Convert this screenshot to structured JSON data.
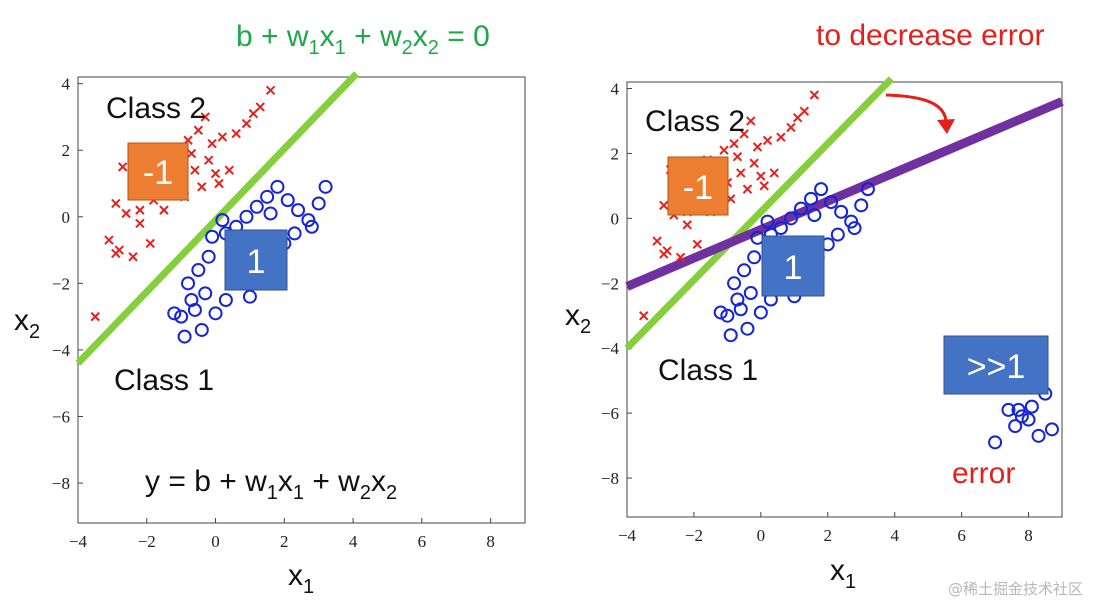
{
  "colors": {
    "class2": "#e8201c",
    "class1": "#1424d8",
    "boundary": "#86cf3c",
    "newBoundary": "#7030a0",
    "orangeBox": "#ed7d31",
    "blueBox": "#4472c4",
    "eqnGreen": "#1ea84a",
    "red": "#e3201b"
  },
  "chart_data": [
    {
      "type": "scatter",
      "xlim": [
        -4,
        9
      ],
      "ylim": [
        -9.2,
        4.2
      ],
      "xticks": [
        "−4",
        "−2",
        "0",
        "2",
        "4",
        "6",
        "8"
      ],
      "yticks": [
        "4",
        "2",
        "0",
        "−2",
        "−4",
        "−6",
        "−8"
      ],
      "xtick_values": [
        -4,
        -2,
        0,
        2,
        4,
        6,
        8
      ],
      "ytick_values": [
        4,
        2,
        0,
        -2,
        -4,
        -6,
        -8
      ],
      "xlabel": "x",
      "xlabel_sub": "1",
      "ylabel": "x",
      "ylabel_sub": "2",
      "series": [
        {
          "name": "Class 2",
          "marker": "x",
          "points": [
            [
              -2.7,
              1.5
            ],
            [
              -2.3,
              1.2
            ],
            [
              -2,
              0.9
            ],
            [
              -1.6,
              1.8
            ],
            [
              -1.3,
              1.5
            ],
            [
              -1.1,
              2.1
            ],
            [
              -0.8,
              2.3
            ],
            [
              -0.5,
              2.6
            ],
            [
              -0.3,
              3.0
            ],
            [
              -0.1,
              2.2
            ],
            [
              0.2,
              2.4
            ],
            [
              0.6,
              2.5
            ],
            [
              0.9,
              2.8
            ],
            [
              1.1,
              3.1
            ],
            [
              1.3,
              3.3
            ],
            [
              1.6,
              3.8
            ],
            [
              -2.9,
              0.4
            ],
            [
              -2.6,
              0.1
            ],
            [
              -2.2,
              0.2
            ],
            [
              -1.8,
              0.5
            ],
            [
              -1.4,
              0.7
            ],
            [
              -1,
              1.1
            ],
            [
              -0.6,
              1.4
            ],
            [
              -0.2,
              1.7
            ],
            [
              0.1,
              1.0
            ],
            [
              0.4,
              1.4
            ],
            [
              -3.1,
              -0.7
            ],
            [
              -2.8,
              -1.0
            ],
            [
              -2.4,
              -1.2
            ],
            [
              -1.9,
              -0.8
            ],
            [
              -3.5,
              -3.0
            ],
            [
              -2.2,
              -0.2
            ],
            [
              -1.5,
              0.2
            ],
            [
              -0.9,
              0.6
            ],
            [
              -0.4,
              0.9
            ],
            [
              0,
              1.3
            ],
            [
              -2.9,
              -1.1
            ],
            [
              -1.2,
              1.6
            ],
            [
              -0.7,
              1.9
            ],
            [
              -1.6,
              0.9
            ]
          ],
          "extra_points": []
        },
        {
          "name": "Class 1",
          "marker": "o",
          "points": [
            [
              0.3,
              -0.5
            ],
            [
              0.6,
              -0.3
            ],
            [
              0.9,
              0
            ],
            [
              1.2,
              0.3
            ],
            [
              1.5,
              0.6
            ],
            [
              1.8,
              0.9
            ],
            [
              2.1,
              0.5
            ],
            [
              2.4,
              0.2
            ],
            [
              2.7,
              -0.1
            ],
            [
              3.0,
              0.4
            ],
            [
              3.2,
              0.9
            ],
            [
              0.5,
              -1.0
            ],
            [
              0.8,
              -1.3
            ],
            [
              1.1,
              -1.6
            ],
            [
              1.4,
              -1.9
            ],
            [
              -0.2,
              -1.2
            ],
            [
              -0.5,
              -1.6
            ],
            [
              -0.8,
              -2.0
            ],
            [
              -0.3,
              -2.3
            ],
            [
              -0.6,
              -2.8
            ],
            [
              -1.0,
              -3.0
            ],
            [
              -0.4,
              -3.4
            ],
            [
              0,
              -2.9
            ],
            [
              0.3,
              -2.5
            ],
            [
              1,
              -2.4
            ],
            [
              1.7,
              -1.2
            ],
            [
              2,
              -0.8
            ],
            [
              2.3,
              -0.5
            ],
            [
              1.6,
              0.1
            ],
            [
              0.2,
              -0.1
            ],
            [
              -0.1,
              -0.6
            ],
            [
              1.2,
              -0.8
            ],
            [
              0.6,
              -1.8
            ],
            [
              -0.7,
              -2.5
            ],
            [
              -1.2,
              -2.9
            ],
            [
              -0.9,
              -3.6
            ],
            [
              2.8,
              -0.3
            ]
          ],
          "extra_points": []
        }
      ],
      "lines": [
        {
          "name": "boundary",
          "from": [
            -4,
            -4.4
          ],
          "to": [
            4.1,
            4.3
          ]
        }
      ]
    },
    {
      "type": "scatter",
      "xlim": [
        -4,
        9
      ],
      "ylim": [
        -9.2,
        4.2
      ],
      "xticks": [
        "−4",
        "−2",
        "0",
        "2",
        "4",
        "6",
        "8"
      ],
      "yticks": [
        "4",
        "2",
        "0",
        "−2",
        "−4",
        "−6",
        "−8"
      ],
      "xtick_values": [
        -4,
        -2,
        0,
        2,
        4,
        6,
        8
      ],
      "ytick_values": [
        4,
        2,
        0,
        -2,
        -4,
        -6,
        -8
      ],
      "xlabel": "x",
      "xlabel_sub": "1",
      "ylabel": "x",
      "ylabel_sub": "2",
      "series": [
        {
          "name": "Class 2",
          "marker": "x",
          "points": [
            [
              -2.7,
              1.5
            ],
            [
              -2.3,
              1.2
            ],
            [
              -2,
              0.9
            ],
            [
              -1.6,
              1.8
            ],
            [
              -1.3,
              1.5
            ],
            [
              -1.1,
              2.1
            ],
            [
              -0.8,
              2.3
            ],
            [
              -0.5,
              2.6
            ],
            [
              -0.3,
              3.0
            ],
            [
              -0.1,
              2.2
            ],
            [
              0.2,
              2.4
            ],
            [
              0.6,
              2.5
            ],
            [
              0.9,
              2.8
            ],
            [
              1.1,
              3.1
            ],
            [
              1.3,
              3.3
            ],
            [
              1.6,
              3.8
            ],
            [
              -2.9,
              0.4
            ],
            [
              -2.6,
              0.1
            ],
            [
              -2.2,
              0.2
            ],
            [
              -1.8,
              0.5
            ],
            [
              -1.4,
              0.7
            ],
            [
              -1,
              1.1
            ],
            [
              -0.6,
              1.4
            ],
            [
              -0.2,
              1.7
            ],
            [
              0.1,
              1.0
            ],
            [
              0.4,
              1.4
            ],
            [
              -3.1,
              -0.7
            ],
            [
              -2.8,
              -1.0
            ],
            [
              -2.4,
              -1.2
            ],
            [
              -1.9,
              -0.8
            ],
            [
              -3.5,
              -3.0
            ],
            [
              -2.2,
              -0.2
            ],
            [
              -1.5,
              0.2
            ],
            [
              -0.9,
              0.6
            ],
            [
              -0.4,
              0.9
            ],
            [
              0,
              1.3
            ],
            [
              -2.9,
              -1.1
            ],
            [
              -1.2,
              1.6
            ],
            [
              -0.7,
              1.9
            ],
            [
              -1.6,
              0.9
            ]
          ],
          "extra_points": []
        },
        {
          "name": "Class 1",
          "marker": "o",
          "points": [
            [
              0.3,
              -0.5
            ],
            [
              0.6,
              -0.3
            ],
            [
              0.9,
              0
            ],
            [
              1.2,
              0.3
            ],
            [
              1.5,
              0.6
            ],
            [
              1.8,
              0.9
            ],
            [
              2.1,
              0.5
            ],
            [
              2.4,
              0.2
            ],
            [
              2.7,
              -0.1
            ],
            [
              3.0,
              0.4
            ],
            [
              3.2,
              0.9
            ],
            [
              0.5,
              -1.0
            ],
            [
              0.8,
              -1.3
            ],
            [
              1.1,
              -1.6
            ],
            [
              1.4,
              -1.9
            ],
            [
              -0.2,
              -1.2
            ],
            [
              -0.5,
              -1.6
            ],
            [
              -0.8,
              -2.0
            ],
            [
              -0.3,
              -2.3
            ],
            [
              -0.6,
              -2.8
            ],
            [
              -1.0,
              -3.0
            ],
            [
              -0.4,
              -3.4
            ],
            [
              0,
              -2.9
            ],
            [
              0.3,
              -2.5
            ],
            [
              1,
              -2.4
            ],
            [
              1.7,
              -1.2
            ],
            [
              2,
              -0.8
            ],
            [
              2.3,
              -0.5
            ],
            [
              1.6,
              0.1
            ],
            [
              0.2,
              -0.1
            ],
            [
              -0.1,
              -0.6
            ],
            [
              1.2,
              -0.8
            ],
            [
              0.6,
              -1.8
            ],
            [
              -0.7,
              -2.5
            ],
            [
              -1.2,
              -2.9
            ],
            [
              -0.9,
              -3.6
            ],
            [
              2.8,
              -0.3
            ]
          ],
          "extra_points": [
            [
              7.4,
              -5.9
            ],
            [
              7.8,
              -6.1
            ],
            [
              8.1,
              -5.8
            ],
            [
              7.6,
              -6.4
            ],
            [
              8.3,
              -6.7
            ],
            [
              8.7,
              -6.5
            ],
            [
              7.0,
              -6.9
            ],
            [
              8.0,
              -6.2
            ],
            [
              8.5,
              -5.4
            ],
            [
              7.7,
              -5.9
            ]
          ]
        }
      ],
      "lines": [
        {
          "name": "boundary",
          "from": [
            -4,
            -4.0
          ],
          "to": [
            3.9,
            4.3
          ]
        },
        {
          "name": "new-boundary",
          "from": [
            -4,
            -2.1
          ],
          "to": [
            9,
            3.6
          ]
        }
      ]
    }
  ],
  "text": {
    "eqn_top": {
      "b": "b + w",
      "s1": "1",
      "x1": "x",
      "s2": "1",
      "plus": " + w",
      "s3": "2",
      "x2": "x",
      "s4": "2",
      "end": " = 0"
    },
    "eqn_bottom": {
      "b": "y = b + w",
      "s1": "1",
      "x1": "x",
      "s2": "1",
      "plus": " + w",
      "s3": "2",
      "x2": "x",
      "s4": "2"
    },
    "class2": "Class 2",
    "class1": "Class 1",
    "box_neg": "-1",
    "box_pos": "1",
    "box_big": ">>1",
    "decrease": "to decrease error",
    "error": "error",
    "watermark": "@稀土掘金技术社区"
  }
}
